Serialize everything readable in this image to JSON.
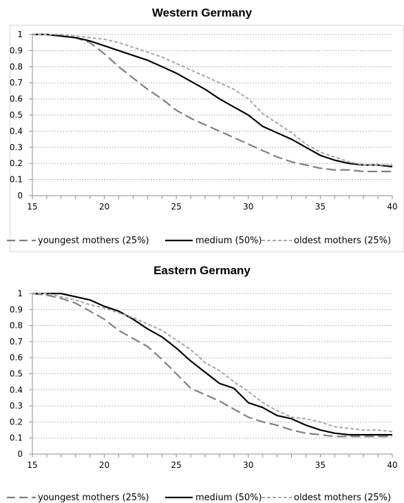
{
  "chart_data": [
    {
      "type": "line",
      "title": "Western Germany",
      "x": [
        15,
        16,
        17,
        18,
        19,
        20,
        21,
        22,
        23,
        24,
        25,
        26,
        27,
        28,
        29,
        30,
        31,
        32,
        33,
        34,
        35,
        36,
        37,
        38,
        39,
        40
      ],
      "series": [
        {
          "name": "youngest mothers (25%)",
          "style": "dashed-long",
          "color": "#7f7f7f",
          "values": [
            1,
            1,
            0.99,
            0.98,
            0.95,
            0.88,
            0.8,
            0.73,
            0.66,
            0.6,
            0.53,
            0.48,
            0.44,
            0.4,
            0.36,
            0.32,
            0.28,
            0.24,
            0.21,
            0.19,
            0.17,
            0.16,
            0.16,
            0.15,
            0.15,
            0.15
          ]
        },
        {
          "name": "medium (50%)",
          "style": "solid",
          "color": "#000000",
          "values": [
            1,
            1,
            0.99,
            0.98,
            0.96,
            0.93,
            0.9,
            0.87,
            0.84,
            0.8,
            0.76,
            0.71,
            0.66,
            0.6,
            0.55,
            0.5,
            0.43,
            0.39,
            0.35,
            0.3,
            0.25,
            0.22,
            0.2,
            0.19,
            0.19,
            0.18
          ]
        },
        {
          "name": "oldest mothers (25%)",
          "style": "dashed-short",
          "color": "#a6a6a6",
          "values": [
            1,
            1,
            1,
            0.99,
            0.98,
            0.97,
            0.95,
            0.92,
            0.89,
            0.86,
            0.82,
            0.78,
            0.74,
            0.7,
            0.66,
            0.6,
            0.51,
            0.45,
            0.39,
            0.32,
            0.27,
            0.24,
            0.21,
            0.19,
            0.19,
            0.19
          ]
        }
      ],
      "x_ticks": [
        15,
        20,
        25,
        30,
        35,
        40
      ],
      "y_ticks": [
        "0",
        "0.1",
        "0.2",
        "0.3",
        "0.4",
        "0.5",
        "0.6",
        "0.7",
        "0.8",
        "0.9",
        "1"
      ],
      "xlim": [
        15,
        40
      ],
      "ylim": [
        0,
        1
      ],
      "grid": "horizontal-dashed",
      "legend": "bottom"
    },
    {
      "type": "line",
      "title": "Eastern Germany",
      "x": [
        15,
        16,
        17,
        18,
        19,
        20,
        21,
        22,
        23,
        24,
        25,
        26,
        27,
        28,
        29,
        30,
        31,
        32,
        33,
        34,
        35,
        36,
        37,
        38,
        39,
        40
      ],
      "series": [
        {
          "name": "youngest mothers (25%)",
          "style": "dashed-long",
          "color": "#7f7f7f",
          "values": [
            1,
            0.99,
            0.97,
            0.94,
            0.89,
            0.84,
            0.77,
            0.72,
            0.67,
            0.59,
            0.5,
            0.41,
            0.37,
            0.33,
            0.28,
            0.23,
            0.2,
            0.18,
            0.15,
            0.13,
            0.12,
            0.11,
            0.11,
            0.11,
            0.11,
            0.11
          ]
        },
        {
          "name": "medium (50%)",
          "style": "solid",
          "color": "#000000",
          "values": [
            1,
            1,
            1,
            0.98,
            0.96,
            0.92,
            0.89,
            0.84,
            0.78,
            0.73,
            0.66,
            0.58,
            0.51,
            0.44,
            0.41,
            0.32,
            0.29,
            0.24,
            0.22,
            0.18,
            0.15,
            0.13,
            0.12,
            0.12,
            0.12,
            0.12
          ]
        },
        {
          "name": "oldest mothers (25%)",
          "style": "dashed-short",
          "color": "#a6a6a6",
          "values": [
            1,
            1,
            0.98,
            0.96,
            0.93,
            0.91,
            0.88,
            0.85,
            0.81,
            0.77,
            0.71,
            0.65,
            0.57,
            0.52,
            0.45,
            0.39,
            0.32,
            0.27,
            0.23,
            0.22,
            0.2,
            0.17,
            0.16,
            0.15,
            0.15,
            0.14
          ]
        }
      ],
      "x_ticks": [
        15,
        20,
        25,
        30,
        35,
        40
      ],
      "y_ticks": [
        "0",
        "0.1",
        "0.2",
        "0.3",
        "0.4",
        "0.5",
        "0.6",
        "0.7",
        "0.8",
        "0.9",
        "1"
      ],
      "xlim": [
        15,
        40
      ],
      "ylim": [
        0,
        1
      ],
      "grid": "horizontal-dashed",
      "legend": "bottom"
    }
  ]
}
